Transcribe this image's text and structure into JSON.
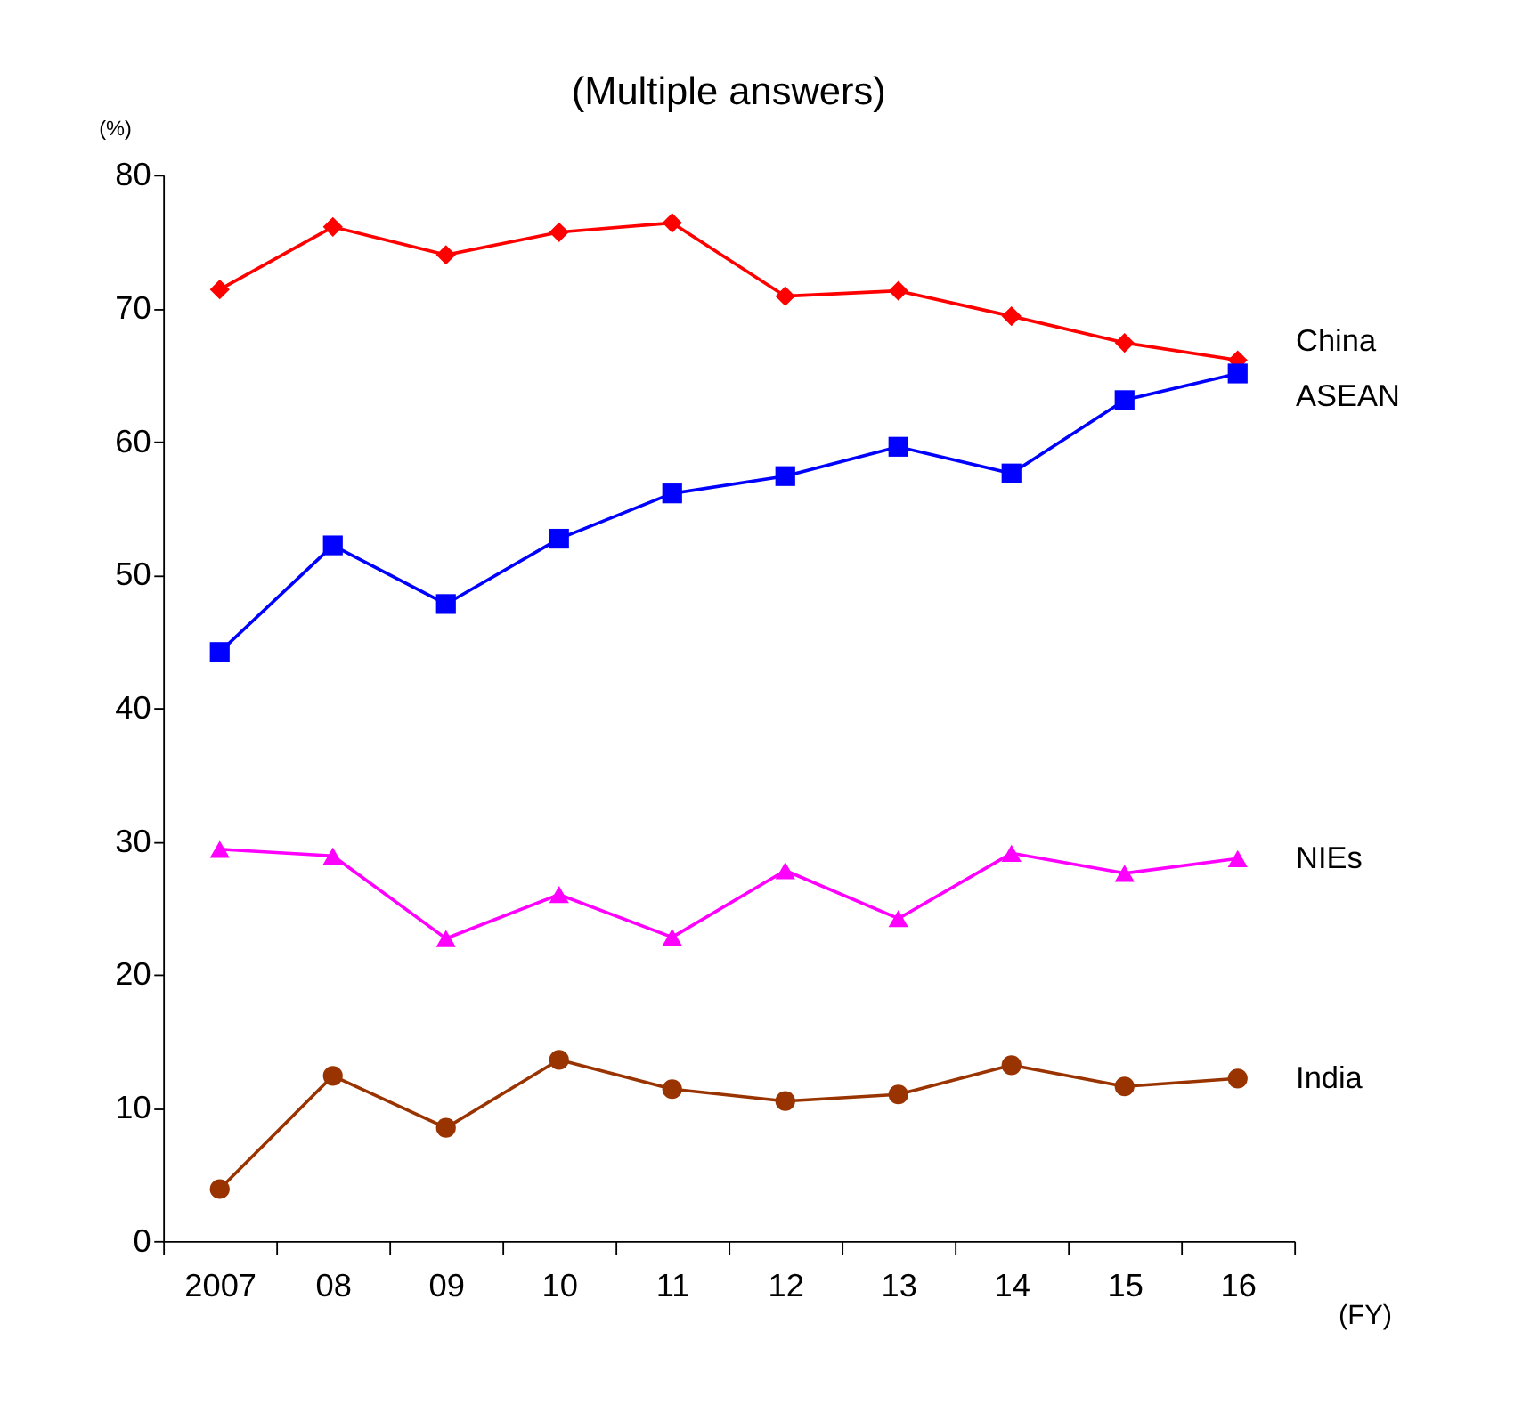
{
  "chart_data": {
    "type": "line",
    "title": "(Multiple answers)",
    "xlabel": "(FY)",
    "ylabel": "(%)",
    "categories": [
      "2007",
      "08",
      "09",
      "10",
      "11",
      "12",
      "13",
      "14",
      "15",
      "16"
    ],
    "series": [
      {
        "name": "China",
        "color": "#ff0000",
        "marker": "diamond",
        "values": [
          71.4,
          76.1,
          74.0,
          75.7,
          76.4,
          70.9,
          71.3,
          69.4,
          67.4,
          66.1
        ]
      },
      {
        "name": "ASEAN",
        "color": "#0000ff",
        "marker": "square",
        "values": [
          44.2,
          52.2,
          47.8,
          52.7,
          56.1,
          57.4,
          59.6,
          57.6,
          63.1,
          65.1
        ]
      },
      {
        "name": "NIEs",
        "color": "#ff00ff",
        "marker": "triangle",
        "values": [
          29.4,
          28.9,
          22.7,
          26.0,
          22.8,
          27.8,
          24.2,
          29.1,
          27.6,
          28.7
        ]
      },
      {
        "name": "India",
        "color": "#993300",
        "marker": "circle",
        "values": [
          3.9,
          12.4,
          8.5,
          13.6,
          11.4,
          10.5,
          11.0,
          13.2,
          11.6,
          12.2
        ]
      }
    ],
    "ylim": [
      0,
      80
    ],
    "yticks": [
      0,
      10,
      20,
      30,
      40,
      50,
      60,
      70,
      80
    ],
    "line_style": "solid"
  }
}
